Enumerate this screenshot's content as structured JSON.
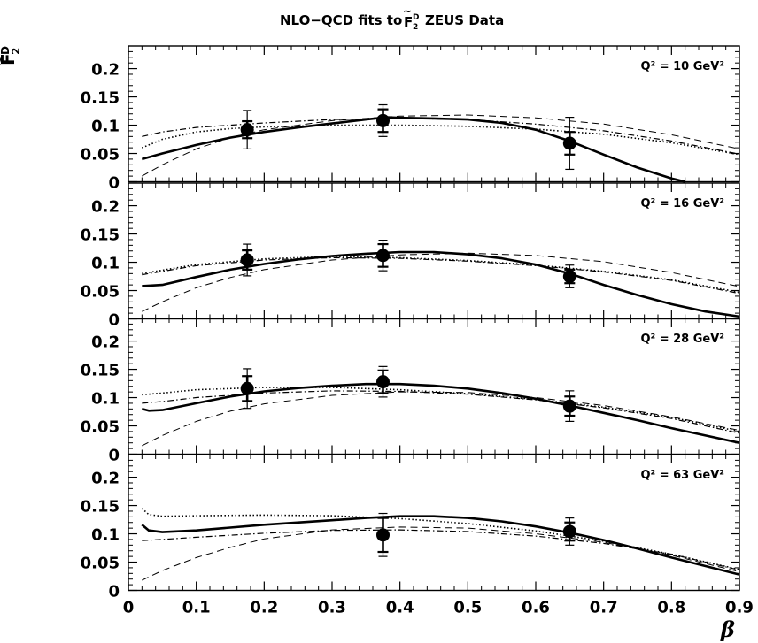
{
  "chart_data": {
    "type": "line",
    "title": "NLO−QCD fits to F̃₂ᴰ ZEUS Data",
    "xlabel": "β",
    "ylabel": "F̃₂ᴰ",
    "xlim": [
      0,
      0.9
    ],
    "ylim": [
      0,
      0.24
    ],
    "x_ticks": [
      "0",
      "0.1",
      "0.2",
      "0.3",
      "0.4",
      "0.5",
      "0.6",
      "0.7",
      "0.8",
      "0.9"
    ],
    "y_ticks": [
      "0",
      "0.05",
      "0.1",
      "0.15",
      "0.2"
    ],
    "grid": false,
    "panels": [
      {
        "label": "Q² = 10 GeV²",
        "points": [
          {
            "x": 0.175,
            "y": 0.092,
            "err_stat": 0.015,
            "err_tot": 0.034
          },
          {
            "x": 0.375,
            "y": 0.108,
            "err_stat": 0.02,
            "err_tot": 0.028
          },
          {
            "x": 0.65,
            "y": 0.068,
            "err_stat": 0.02,
            "err_tot": 0.046
          }
        ],
        "series": [
          {
            "style": "solid",
            "x": [
              0.02,
              0.05,
              0.1,
              0.15,
              0.2,
              0.25,
              0.3,
              0.35,
              0.38,
              0.4,
              0.45,
              0.5,
              0.55,
              0.58,
              0.6,
              0.65,
              0.7,
              0.75,
              0.8,
              0.82
            ],
            "y": [
              0.04,
              0.05,
              0.065,
              0.078,
              0.088,
              0.096,
              0.103,
              0.11,
              0.114,
              0.113,
              0.112,
              0.11,
              0.104,
              0.097,
              0.092,
              0.072,
              0.048,
              0.025,
              0.006,
              0.0
            ]
          },
          {
            "style": "dotted",
            "x": [
              0.02,
              0.05,
              0.1,
              0.15,
              0.2,
              0.3,
              0.4,
              0.5,
              0.6,
              0.7,
              0.8,
              0.9
            ],
            "y": [
              0.06,
              0.075,
              0.088,
              0.094,
              0.097,
              0.1,
              0.1,
              0.098,
              0.093,
              0.084,
              0.069,
              0.048
            ]
          },
          {
            "style": "dashdot",
            "x": [
              0.02,
              0.05,
              0.1,
              0.2,
              0.3,
              0.4,
              0.5,
              0.6,
              0.7,
              0.8,
              0.9
            ],
            "y": [
              0.08,
              0.088,
              0.096,
              0.104,
              0.11,
              0.112,
              0.11,
              0.102,
              0.09,
              0.072,
              0.049
            ]
          },
          {
            "style": "dashed",
            "x": [
              0.02,
              0.05,
              0.1,
              0.15,
              0.2,
              0.3,
              0.4,
              0.5,
              0.6,
              0.7,
              0.8,
              0.9
            ],
            "y": [
              0.01,
              0.03,
              0.058,
              0.078,
              0.092,
              0.108,
              0.116,
              0.118,
              0.113,
              0.102,
              0.083,
              0.058
            ]
          }
        ]
      },
      {
        "label": "Q² = 16 GeV²",
        "points": [
          {
            "x": 0.175,
            "y": 0.104,
            "err_stat": 0.017,
            "err_tot": 0.028
          },
          {
            "x": 0.375,
            "y": 0.112,
            "err_stat": 0.02,
            "err_tot": 0.027
          },
          {
            "x": 0.65,
            "y": 0.075,
            "err_stat": 0.012,
            "err_tot": 0.02
          }
        ],
        "series": [
          {
            "style": "solid",
            "x": [
              0.02,
              0.05,
              0.1,
              0.15,
              0.2,
              0.25,
              0.3,
              0.35,
              0.4,
              0.45,
              0.5,
              0.55,
              0.6,
              0.65,
              0.7,
              0.75,
              0.8,
              0.85,
              0.9
            ],
            "y": [
              0.058,
              0.06,
              0.074,
              0.087,
              0.097,
              0.105,
              0.111,
              0.115,
              0.118,
              0.118,
              0.114,
              0.107,
              0.096,
              0.08,
              0.06,
              0.042,
              0.026,
              0.013,
              0.004
            ]
          },
          {
            "style": "dotted",
            "x": [
              0.02,
              0.1,
              0.2,
              0.3,
              0.4,
              0.5,
              0.6,
              0.7,
              0.8,
              0.9
            ],
            "y": [
              0.08,
              0.096,
              0.106,
              0.11,
              0.108,
              0.103,
              0.095,
              0.084,
              0.069,
              0.047
            ]
          },
          {
            "style": "dashdot",
            "x": [
              0.02,
              0.1,
              0.2,
              0.3,
              0.4,
              0.5,
              0.6,
              0.7,
              0.8,
              0.9
            ],
            "y": [
              0.078,
              0.094,
              0.104,
              0.108,
              0.107,
              0.102,
              0.094,
              0.083,
              0.068,
              0.045
            ]
          },
          {
            "style": "dashed",
            "x": [
              0.02,
              0.05,
              0.1,
              0.15,
              0.2,
              0.3,
              0.4,
              0.5,
              0.6,
              0.7,
              0.8,
              0.9
            ],
            "y": [
              0.013,
              0.03,
              0.055,
              0.073,
              0.087,
              0.104,
              0.113,
              0.116,
              0.112,
              0.101,
              0.082,
              0.057
            ]
          }
        ]
      },
      {
        "label": "Q² = 28 GeV²",
        "points": [
          {
            "x": 0.175,
            "y": 0.116,
            "err_stat": 0.022,
            "err_tot": 0.035
          },
          {
            "x": 0.375,
            "y": 0.128,
            "err_stat": 0.02,
            "err_tot": 0.027
          },
          {
            "x": 0.65,
            "y": 0.085,
            "err_stat": 0.017,
            "err_tot": 0.027
          }
        ],
        "series": [
          {
            "style": "solid",
            "x": [
              0.02,
              0.03,
              0.05,
              0.1,
              0.15,
              0.2,
              0.25,
              0.3,
              0.35,
              0.4,
              0.45,
              0.5,
              0.55,
              0.6,
              0.65,
              0.7,
              0.75,
              0.8,
              0.85,
              0.9
            ],
            "y": [
              0.08,
              0.077,
              0.078,
              0.09,
              0.102,
              0.111,
              0.117,
              0.121,
              0.124,
              0.124,
              0.121,
              0.116,
              0.108,
              0.098,
              0.086,
              0.073,
              0.06,
              0.046,
              0.033,
              0.02
            ]
          },
          {
            "style": "dotted",
            "x": [
              0.02,
              0.05,
              0.1,
              0.2,
              0.3,
              0.4,
              0.5,
              0.6,
              0.7,
              0.8,
              0.9
            ],
            "y": [
              0.105,
              0.108,
              0.114,
              0.118,
              0.118,
              0.114,
              0.107,
              0.097,
              0.083,
              0.065,
              0.04
            ]
          },
          {
            "style": "dashdot",
            "x": [
              0.02,
              0.05,
              0.1,
              0.2,
              0.3,
              0.4,
              0.5,
              0.6,
              0.7,
              0.8,
              0.9
            ],
            "y": [
              0.09,
              0.093,
              0.1,
              0.108,
              0.112,
              0.111,
              0.106,
              0.096,
              0.082,
              0.063,
              0.037
            ]
          },
          {
            "style": "dashed",
            "x": [
              0.02,
              0.05,
              0.1,
              0.15,
              0.2,
              0.3,
              0.4,
              0.5,
              0.6,
              0.7,
              0.8,
              0.9
            ],
            "y": [
              0.015,
              0.033,
              0.058,
              0.076,
              0.089,
              0.104,
              0.11,
              0.109,
              0.1,
              0.086,
              0.066,
              0.042
            ]
          }
        ]
      },
      {
        "label": "Q² = 63 GeV²",
        "points": [
          {
            "x": 0.375,
            "y": 0.098,
            "err_stat": 0.03,
            "err_tot": 0.038
          },
          {
            "x": 0.65,
            "y": 0.104,
            "err_stat": 0.016,
            "err_tot": 0.024
          }
        ],
        "series": [
          {
            "style": "solid",
            "x": [
              0.02,
              0.03,
              0.05,
              0.1,
              0.15,
              0.2,
              0.3,
              0.35,
              0.4,
              0.45,
              0.5,
              0.55,
              0.6,
              0.65,
              0.7,
              0.75,
              0.8,
              0.85,
              0.9
            ],
            "y": [
              0.116,
              0.106,
              0.103,
              0.106,
              0.111,
              0.116,
              0.124,
              0.128,
              0.131,
              0.131,
              0.128,
              0.122,
              0.113,
              0.102,
              0.089,
              0.074,
              0.058,
              0.043,
              0.028
            ]
          },
          {
            "style": "dotted",
            "x": [
              0.02,
              0.03,
              0.05,
              0.1,
              0.2,
              0.3,
              0.4,
              0.5,
              0.6,
              0.7,
              0.8,
              0.9
            ],
            "y": [
              0.145,
              0.134,
              0.131,
              0.132,
              0.133,
              0.132,
              0.127,
              0.118,
              0.105,
              0.087,
              0.064,
              0.037
            ]
          },
          {
            "style": "dashdot",
            "x": [
              0.02,
              0.05,
              0.1,
              0.2,
              0.3,
              0.4,
              0.5,
              0.6,
              0.7,
              0.8,
              0.9
            ],
            "y": [
              0.088,
              0.09,
              0.094,
              0.101,
              0.106,
              0.107,
              0.104,
              0.096,
              0.083,
              0.064,
              0.036
            ]
          },
          {
            "style": "dashed",
            "x": [
              0.02,
              0.05,
              0.1,
              0.15,
              0.2,
              0.3,
              0.4,
              0.5,
              0.6,
              0.7,
              0.8,
              0.9
            ],
            "y": [
              0.018,
              0.035,
              0.058,
              0.076,
              0.091,
              0.107,
              0.112,
              0.11,
              0.1,
              0.085,
              0.062,
              0.033
            ]
          }
        ]
      }
    ]
  }
}
